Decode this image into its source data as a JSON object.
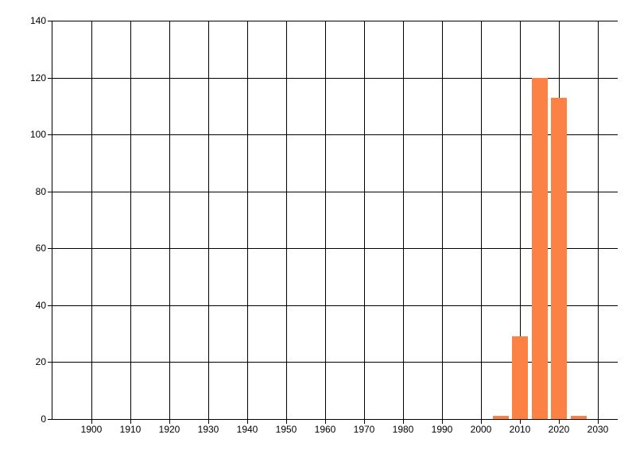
{
  "chart_data": {
    "type": "bar",
    "title": "",
    "xlabel": "",
    "ylabel": "",
    "x": [
      2005,
      2010,
      2015,
      2020,
      2025
    ],
    "values": [
      1,
      29,
      120,
      113,
      1
    ],
    "xlim": [
      1890,
      2035
    ],
    "ylim": [
      0,
      140
    ],
    "x_ticks": [
      1900,
      1910,
      1920,
      1930,
      1940,
      1950,
      1960,
      1970,
      1980,
      1990,
      2000,
      2010,
      2020,
      2030
    ],
    "y_ticks": [
      0,
      20,
      40,
      60,
      80,
      100,
      120,
      140
    ],
    "grid": true,
    "legend": false,
    "bar_color": "#fc8144",
    "grid_color": "#000000",
    "text_color": "#000000",
    "background_color": "#ffffff",
    "bar_width_years": 4.1
  }
}
